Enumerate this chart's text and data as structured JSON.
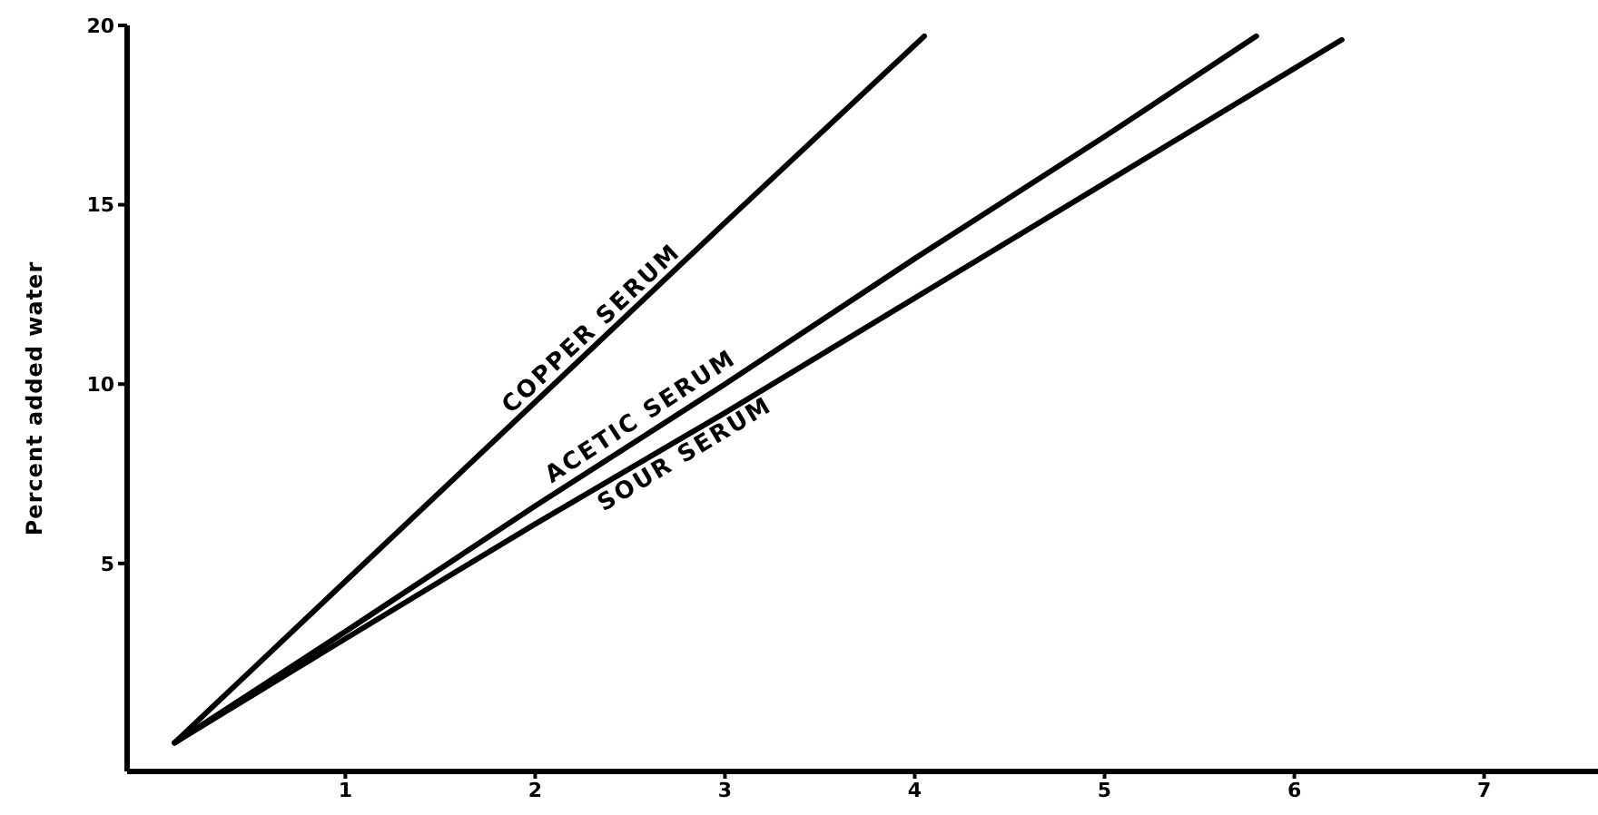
{
  "chart_data": {
    "type": "line",
    "ylabel": "Percent added water",
    "xlim": [
      -0.15,
      7.6
    ],
    "xticks": [
      1,
      2,
      3,
      4,
      5,
      6,
      7
    ],
    "ylim": [
      -0.8,
      20
    ],
    "yticks": [
      5,
      10,
      15,
      20
    ],
    "marker": "none",
    "line_style": "solid",
    "series": [
      {
        "name": "COPPER SERUM",
        "color": "#000000",
        "x": [
          0.1,
          1,
          2,
          3,
          4.05
        ],
        "values": [
          0,
          4.5,
          9.5,
          14.5,
          19.7
        ]
      },
      {
        "name": "ACETIC SERUM",
        "color": "#000000",
        "x": [
          0.1,
          1,
          2,
          3,
          4,
          5,
          5.8
        ],
        "values": [
          0,
          3.1,
          6.6,
          10,
          13.5,
          16.9,
          19.7
        ]
      },
      {
        "name": "SOUR SERUM",
        "color": "#000000",
        "x": [
          0.1,
          1,
          2,
          3,
          4,
          5,
          6,
          6.25
        ],
        "values": [
          0,
          2.9,
          6.1,
          9.2,
          12.4,
          15.6,
          18.8,
          19.6
        ]
      }
    ]
  }
}
